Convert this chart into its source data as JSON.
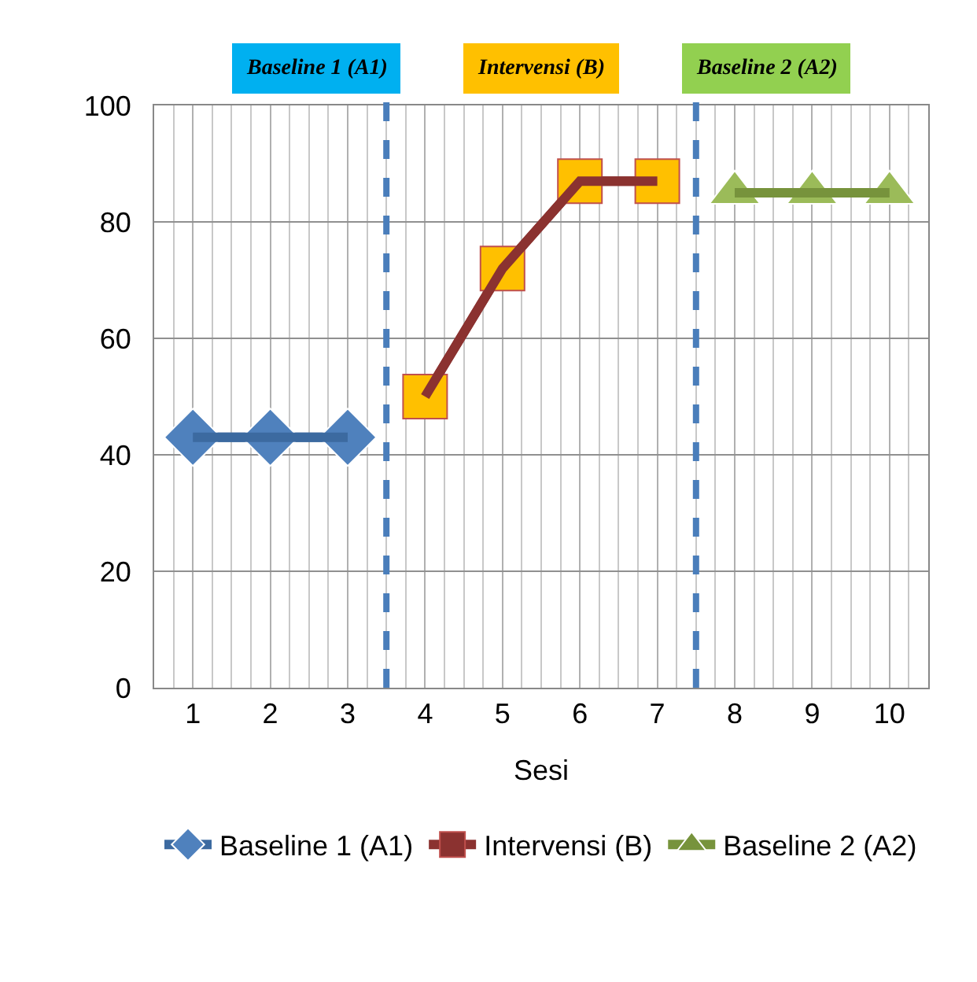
{
  "chart_data": {
    "type": "line",
    "xlabel": "Sesi",
    "x": [
      1,
      2,
      3,
      4,
      5,
      6,
      7,
      8,
      9,
      10
    ],
    "xlim": [
      0.5,
      10.5
    ],
    "xticks": [
      1,
      2,
      3,
      4,
      5,
      6,
      7,
      8,
      9,
      10
    ],
    "ylim": [
      0,
      100
    ],
    "yticks": [
      0,
      20,
      40,
      60,
      80,
      100
    ],
    "grid": true,
    "legend": "bottom",
    "line_style": "solid",
    "series": [
      {
        "name": "Baseline 1 (A1)",
        "color": "#3c6aa0",
        "colors": [
          "#4f81bd",
          "#4f81bd",
          "#4f81bd",
          null,
          null,
          null,
          null,
          null,
          null,
          null
        ],
        "marker": "diamond",
        "values": [
          43,
          43,
          43,
          null,
          null,
          null,
          null,
          null,
          null,
          null
        ]
      },
      {
        "name": "Intervensi (B)",
        "color": "#8b3230",
        "colors": [
          null,
          null,
          null,
          "#ffc000",
          "#ffc000",
          "#ffc000",
          "#ffc000",
          null,
          null,
          null
        ],
        "marker": "square",
        "values": [
          null,
          null,
          null,
          50,
          72,
          87,
          87,
          null,
          null,
          null
        ]
      },
      {
        "name": "Baseline 2 (A2)",
        "color": "#77933c",
        "colors": [
          null,
          null,
          null,
          null,
          null,
          null,
          null,
          "#9bbb59",
          "#9bbb59",
          "#9bbb59"
        ],
        "marker": "triangle",
        "values": [
          null,
          null,
          null,
          null,
          null,
          null,
          null,
          85,
          85,
          85
        ]
      }
    ],
    "ref_lines": [
      {
        "axis": "x",
        "value": 3.5,
        "color": "#4a7ebb",
        "line_style": "dashed"
      },
      {
        "axis": "x",
        "value": 7.5,
        "color": "#4a7ebb",
        "line_style": "dashed"
      }
    ],
    "annotations": [
      "Baseline 1 (A1)",
      "Intervensi (B)",
      "Baseline 2 (A2)"
    ]
  }
}
